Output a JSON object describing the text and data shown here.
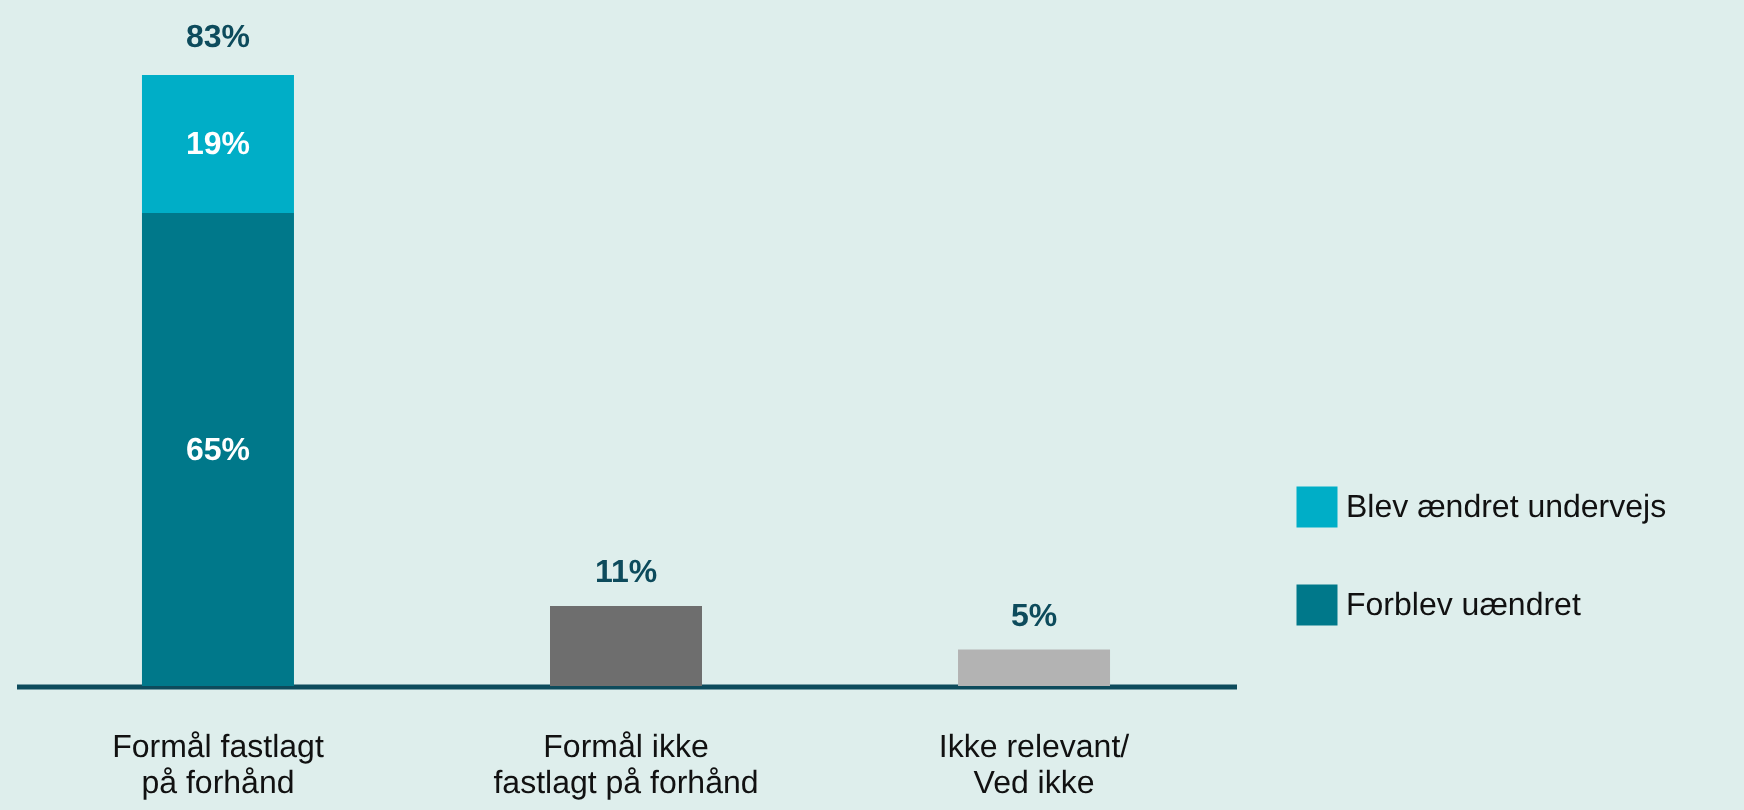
{
  "chart_data": {
    "type": "bar",
    "stacked": true,
    "categories": [
      "Formål fastlagt på forhånd",
      "Formål ikke fastlagt på forhånd",
      "Ikke relevant/ Ved ikke"
    ],
    "series": [
      {
        "name": "Forblev uændret",
        "color": "#00788a",
        "values": [
          65,
          null,
          null
        ],
        "value_labels": [
          "65%",
          null,
          null
        ]
      },
      {
        "name": "Blev ændret undervejs",
        "color": "#00aec7",
        "values": [
          19,
          null,
          null
        ],
        "value_labels": [
          "19%",
          null,
          null
        ]
      },
      {
        "color": "#6e6e6e",
        "values": [
          null,
          11,
          null
        ],
        "value_labels": [
          null,
          "11%",
          null
        ]
      },
      {
        "color": "#b3b3b3",
        "values": [
          null,
          null,
          5
        ],
        "value_labels": [
          null,
          null,
          "5%"
        ]
      }
    ],
    "totals": [
      "83%",
      null,
      null
    ],
    "legend": "right",
    "grid": false
  }
}
